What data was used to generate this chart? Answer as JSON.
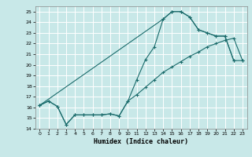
{
  "title": "",
  "xlabel": "Humidex (Indice chaleur)",
  "bg_color": "#c8e8e8",
  "grid_color": "#ffffff",
  "line_color": "#1a6b6b",
  "xlim": [
    -0.5,
    23.5
  ],
  "ylim": [
    14,
    25.5
  ],
  "xticks": [
    0,
    1,
    2,
    3,
    4,
    5,
    6,
    7,
    8,
    9,
    10,
    11,
    12,
    13,
    14,
    15,
    16,
    17,
    18,
    19,
    20,
    21,
    22,
    23
  ],
  "yticks": [
    14,
    15,
    16,
    17,
    18,
    19,
    20,
    21,
    22,
    23,
    24,
    25
  ],
  "line1_x": [
    0,
    1,
    2,
    3,
    4,
    5,
    6,
    7,
    8,
    9,
    10,
    11,
    12,
    13,
    14,
    15,
    16,
    17,
    18,
    19,
    20,
    21,
    22
  ],
  "line1_y": [
    16.2,
    16.6,
    16.1,
    14.4,
    15.3,
    15.3,
    15.3,
    15.3,
    15.4,
    15.2,
    16.6,
    18.6,
    20.5,
    21.7,
    24.3,
    25.0,
    25.0,
    24.5,
    23.3,
    23.0,
    22.7,
    22.7,
    20.4
  ],
  "line2_x": [
    0,
    1,
    2,
    3,
    4,
    5,
    6,
    7,
    8,
    9,
    10,
    11,
    12,
    13,
    14,
    15,
    16,
    17,
    18,
    19,
    20,
    21,
    22,
    23
  ],
  "line2_y": [
    16.2,
    16.6,
    16.1,
    14.4,
    15.3,
    15.3,
    15.3,
    15.3,
    15.4,
    15.2,
    16.6,
    17.2,
    17.9,
    18.6,
    19.3,
    19.8,
    20.3,
    20.8,
    21.2,
    21.7,
    22.0,
    22.3,
    22.5,
    20.4
  ],
  "line3_x": [
    0,
    14,
    15,
    16,
    17,
    18,
    19,
    20,
    21,
    22,
    23
  ],
  "line3_y": [
    16.2,
    24.3,
    25.0,
    25.0,
    24.5,
    23.3,
    23.0,
    22.7,
    22.7,
    20.4,
    20.4
  ]
}
